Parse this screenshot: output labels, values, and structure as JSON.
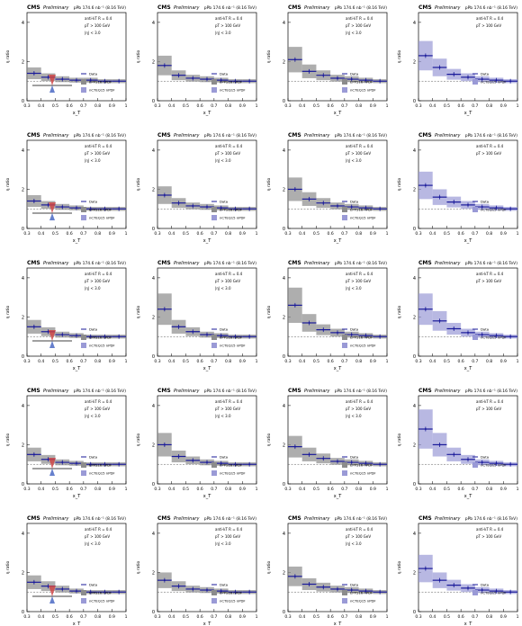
{
  "figure": {
    "cms_label": "CMS",
    "prelim_label": "Preliminary",
    "lumi_label": "pPb 174.6 nb⁻¹ (8.16 TeV)",
    "ylabel": "η ratio",
    "xlabel": "x_T",
    "x_ticks": [
      "0.3",
      "0.4",
      "0.5",
      "0.6",
      "0.7",
      "0.8",
      "0.9",
      "1"
    ],
    "y_ticks": [
      "0",
      "2",
      "4"
    ],
    "legend": {
      "data": "Data",
      "model1": "EPPS16 nPDF",
      "model2": "nCTEQ15 nPDF"
    },
    "colors": {
      "data": "#1a1a9a",
      "model1": "#8c8c8c",
      "model2": "#9a9ad6",
      "ref": "#555555",
      "arrow_red": "#d04040",
      "arrow_blue": "#4060c0"
    }
  },
  "chart_data": [
    {
      "type": "scatter",
      "row": 1,
      "col": 1,
      "x": [
        0.35,
        0.45,
        0.55,
        0.65,
        0.75,
        0.85,
        0.95
      ],
      "values": [
        1.4,
        1.2,
        1.1,
        1.05,
        1.05,
        1.0,
        1.0
      ],
      "ylim": [
        0,
        4.5
      ],
      "band": "gray",
      "text": [
        "anti-kT R = 0.4",
        "pT > 100 GeV",
        "|η| < 3.0",
        "Data",
        "EPPS16 nPDF",
        "nCTEQ15 nPDF"
      ]
    },
    {
      "type": "scatter",
      "row": 1,
      "col": 2,
      "x": [
        0.35,
        0.45,
        0.55,
        0.65,
        0.75,
        0.85,
        0.95
      ],
      "values": [
        1.8,
        1.3,
        1.15,
        1.1,
        1.05,
        1.0,
        1.0
      ],
      "ylim": [
        0,
        4.5
      ],
      "band": "gray",
      "text": [
        "anti-kT R = 0.4",
        "pT > 100 GeV",
        "|η| < 3.0",
        "Data",
        "EPPS16 nPDF",
        "nCTEQ15 nPDF"
      ]
    },
    {
      "type": "scatter",
      "row": 1,
      "col": 3,
      "x": [
        0.35,
        0.45,
        0.55,
        0.65,
        0.75,
        0.85,
        0.95
      ],
      "values": [
        2.1,
        1.5,
        1.3,
        1.15,
        1.1,
        1.05,
        1.0
      ],
      "ylim": [
        0,
        4.5
      ],
      "band": "gray",
      "text": [
        "anti-kT R = 0.4",
        "pT > 100 GeV",
        "|η| < 3.0",
        "Data",
        "EPPS16 nPDF",
        "nCTEQ15 nPDF"
      ]
    },
    {
      "type": "scatter",
      "row": 1,
      "col": 4,
      "x": [
        0.35,
        0.45,
        0.55,
        0.65,
        0.75,
        0.85,
        0.95
      ],
      "values": [
        2.3,
        1.7,
        1.35,
        1.2,
        1.1,
        1.05,
        1.0
      ],
      "ylim": [
        0,
        4.5
      ],
      "band": "blue",
      "text": [
        "anti-kT R = 0.4",
        "pT > 100 GeV",
        "Data",
        "nCTEQ15 nPDF"
      ]
    },
    {
      "type": "scatter",
      "row": 2,
      "col": 1,
      "x": [
        0.35,
        0.45,
        0.55,
        0.65,
        0.75,
        0.85,
        0.95
      ],
      "values": [
        1.4,
        1.2,
        1.1,
        1.05,
        1.0,
        1.0,
        1.0
      ],
      "ylim": [
        0,
        4.5
      ],
      "band": "gray",
      "text": [
        "anti-kT R = 0.4",
        "pT > 100 GeV",
        "|η| < 3.0",
        "Data",
        "EPPS16 nPDF",
        "nCTEQ15 nPDF"
      ]
    },
    {
      "type": "scatter",
      "row": 2,
      "col": 2,
      "x": [
        0.35,
        0.45,
        0.55,
        0.65,
        0.75,
        0.85,
        0.95
      ],
      "values": [
        1.7,
        1.3,
        1.15,
        1.1,
        1.05,
        1.0,
        1.0
      ],
      "ylim": [
        0,
        4.5
      ],
      "band": "gray",
      "text": [
        "anti-kT R = 0.4",
        "pT > 100 GeV",
        "|η| < 3.0",
        "Data",
        "EPPS16 nPDF",
        "nCTEQ15 nPDF"
      ]
    },
    {
      "type": "scatter",
      "row": 2,
      "col": 3,
      "x": [
        0.35,
        0.45,
        0.55,
        0.65,
        0.75,
        0.85,
        0.95
      ],
      "values": [
        2.0,
        1.5,
        1.3,
        1.15,
        1.1,
        1.05,
        1.0
      ],
      "ylim": [
        0,
        4.5
      ],
      "band": "gray",
      "text": [
        "anti-kT R = 0.4",
        "pT > 100 GeV",
        "|η| < 3.0",
        "Data",
        "EPPS16 nPDF",
        "nCTEQ15 nPDF"
      ]
    },
    {
      "type": "scatter",
      "row": 2,
      "col": 4,
      "x": [
        0.35,
        0.45,
        0.55,
        0.65,
        0.75,
        0.85,
        0.95
      ],
      "values": [
        2.2,
        1.6,
        1.35,
        1.2,
        1.1,
        1.05,
        1.0
      ],
      "ylim": [
        0,
        4.5
      ],
      "band": "blue",
      "text": [
        "anti-kT R = 0.4",
        "pT > 100 GeV",
        "Data",
        "nCTEQ15 nPDF"
      ]
    },
    {
      "type": "scatter",
      "row": 3,
      "col": 1,
      "x": [
        0.35,
        0.45,
        0.55,
        0.65,
        0.75,
        0.85,
        0.95
      ],
      "values": [
        1.5,
        1.25,
        1.1,
        1.05,
        1.0,
        1.0,
        1.0
      ],
      "ylim": [
        0,
        4.5
      ],
      "band": "gray",
      "text": [
        "anti-kT R = 0.4",
        "pT > 100 GeV",
        "|η| < 3.0",
        "Data",
        "EPPS16 nPDF",
        "nCTEQ15 nPDF"
      ]
    },
    {
      "type": "scatter",
      "row": 3,
      "col": 2,
      "x": [
        0.35,
        0.45,
        0.55,
        0.65,
        0.75,
        0.85,
        0.95
      ],
      "values": [
        2.4,
        1.5,
        1.25,
        1.1,
        1.05,
        1.0,
        1.0
      ],
      "ylim": [
        0,
        4.5
      ],
      "band": "gray",
      "text": [
        "anti-kT R = 0.4",
        "pT > 100 GeV",
        "|η| < 3.0",
        "Data",
        "EPPS16 nPDF",
        "nCTEQ15 nPDF"
      ]
    },
    {
      "type": "scatter",
      "row": 3,
      "col": 3,
      "x": [
        0.35,
        0.45,
        0.55,
        0.65,
        0.75,
        0.85,
        0.95
      ],
      "values": [
        2.6,
        1.7,
        1.35,
        1.2,
        1.1,
        1.05,
        1.0
      ],
      "ylim": [
        0,
        4.5
      ],
      "band": "gray",
      "text": [
        "anti-kT R = 0.4",
        "pT > 100 GeV",
        "|η| < 3.0",
        "Data",
        "EPPS16 nPDF",
        "nCTEQ15 nPDF"
      ]
    },
    {
      "type": "scatter",
      "row": 3,
      "col": 4,
      "x": [
        0.35,
        0.45,
        0.55,
        0.65,
        0.75,
        0.85,
        0.95
      ],
      "values": [
        2.4,
        1.8,
        1.4,
        1.2,
        1.1,
        1.05,
        1.0
      ],
      "ylim": [
        0,
        4.5
      ],
      "band": "blue",
      "text": [
        "anti-kT R = 0.4",
        "pT > 100 GeV",
        "Data",
        "nCTEQ15 nPDF"
      ]
    },
    {
      "type": "scatter",
      "row": 4,
      "col": 1,
      "x": [
        0.35,
        0.45,
        0.55,
        0.65,
        0.75,
        0.85,
        0.95
      ],
      "values": [
        1.5,
        1.25,
        1.1,
        1.05,
        1.0,
        1.0,
        1.0
      ],
      "ylim": [
        0,
        4.5
      ],
      "band": "gray",
      "text": [
        "anti-kT R = 0.4",
        "pT > 100 GeV",
        "|η| < 3.0",
        "Data",
        "EPPS16 nPDF",
        "nCTEQ15 nPDF"
      ]
    },
    {
      "type": "scatter",
      "row": 4,
      "col": 2,
      "x": [
        0.35,
        0.45,
        0.55,
        0.65,
        0.75,
        0.85,
        0.95
      ],
      "values": [
        2.0,
        1.4,
        1.2,
        1.1,
        1.05,
        1.0,
        1.0
      ],
      "ylim": [
        0,
        4.5
      ],
      "band": "gray",
      "text": [
        "anti-kT R = 0.4",
        "pT > 100 GeV",
        "|η| < 3.0",
        "Data",
        "EPPS16 nPDF",
        "nCTEQ15 nPDF"
      ]
    },
    {
      "type": "scatter",
      "row": 4,
      "col": 3,
      "x": [
        0.35,
        0.45,
        0.55,
        0.65,
        0.75,
        0.85,
        0.95
      ],
      "values": [
        1.9,
        1.5,
        1.3,
        1.15,
        1.1,
        1.05,
        1.0
      ],
      "ylim": [
        0,
        4.5
      ],
      "band": "gray",
      "text": [
        "anti-kT R = 0.4",
        "pT > 100 GeV",
        "|η| < 3.0",
        "Data",
        "EPPS16 nPDF",
        "nCTEQ15 nPDF"
      ]
    },
    {
      "type": "scatter",
      "row": 4,
      "col": 4,
      "x": [
        0.35,
        0.45,
        0.55,
        0.65,
        0.75,
        0.85,
        0.95
      ],
      "values": [
        2.8,
        2.0,
        1.5,
        1.25,
        1.1,
        1.05,
        1.0
      ],
      "ylim": [
        0,
        4.5
      ],
      "band": "blue",
      "text": [
        "anti-kT R = 0.4",
        "pT > 100 GeV",
        "Data",
        "nCTEQ15 nPDF"
      ]
    },
    {
      "type": "scatter",
      "row": 5,
      "col": 1,
      "x": [
        0.35,
        0.45,
        0.55,
        0.65,
        0.75,
        0.85,
        0.95
      ],
      "values": [
        1.5,
        1.3,
        1.15,
        1.05,
        1.0,
        1.0,
        1.0
      ],
      "ylim": [
        0,
        4.5
      ],
      "band": "gray",
      "text": [
        "anti-kT R = 0.4",
        "pT > 100 GeV",
        "|η| < 3.0",
        "Data",
        "EPPS16 nPDF",
        "nCTEQ15 nPDF"
      ]
    },
    {
      "type": "scatter",
      "row": 5,
      "col": 2,
      "x": [
        0.35,
        0.45,
        0.55,
        0.65,
        0.75,
        0.85,
        0.95
      ],
      "values": [
        1.6,
        1.3,
        1.15,
        1.1,
        1.05,
        1.0,
        1.0
      ],
      "ylim": [
        0,
        4.5
      ],
      "band": "gray",
      "text": [
        "anti-kT R = 0.4",
        "pT > 100 GeV",
        "|η| < 3.0",
        "Data",
        "EPPS16 nPDF",
        "nCTEQ15 nPDF"
      ]
    },
    {
      "type": "scatter",
      "row": 5,
      "col": 3,
      "x": [
        0.35,
        0.45,
        0.55,
        0.65,
        0.75,
        0.85,
        0.95
      ],
      "values": [
        1.8,
        1.4,
        1.25,
        1.15,
        1.1,
        1.05,
        1.0
      ],
      "ylim": [
        0,
        4.5
      ],
      "band": "gray",
      "text": [
        "anti-kT R = 0.4",
        "pT > 100 GeV",
        "|η| < 3.0",
        "Data",
        "EPPS16 nPDF",
        "nCTEQ15 nPDF"
      ]
    },
    {
      "type": "scatter",
      "row": 5,
      "col": 4,
      "x": [
        0.35,
        0.45,
        0.55,
        0.65,
        0.75,
        0.85,
        0.95
      ],
      "values": [
        2.2,
        1.6,
        1.35,
        1.2,
        1.1,
        1.05,
        1.0
      ],
      "ylim": [
        0,
        4.5
      ],
      "band": "blue",
      "text": [
        "anti-kT R = 0.4",
        "pT > 100 GeV",
        "Data",
        "nCTEQ15 nPDF"
      ]
    }
  ]
}
